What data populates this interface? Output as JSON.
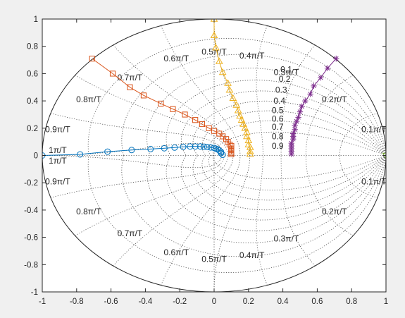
{
  "chart_data": {
    "type": "scatter",
    "title": "",
    "xlabel": "",
    "ylabel": "",
    "xlim": [
      -1,
      1
    ],
    "ylim": [
      -1,
      1
    ],
    "grid": "zgrid",
    "legend": "none",
    "x_ticks": [
      "-1",
      "-0.8",
      "-0.6",
      "-0.4",
      "-0.2",
      "0",
      "0.2",
      "0.4",
      "0.6",
      "0.8",
      "1"
    ],
    "y_ticks": [
      "1",
      "0.8",
      "0.6",
      "0.4",
      "0.2",
      "0",
      "-0.2",
      "-0.4",
      "-0.6",
      "-0.8",
      "-1"
    ],
    "zeta_labels": [
      {
        "text": "0.1",
        "x": 0.42,
        "y": 0.63
      },
      {
        "text": "0.2",
        "x": 0.41,
        "y": 0.56
      },
      {
        "text": "0.3",
        "x": 0.39,
        "y": 0.48
      },
      {
        "text": "0.4",
        "x": 0.38,
        "y": 0.4
      },
      {
        "text": "0.5",
        "x": 0.37,
        "y": 0.33
      },
      {
        "text": "0.6",
        "x": 0.37,
        "y": 0.27
      },
      {
        "text": "0.7",
        "x": 0.37,
        "y": 0.21
      },
      {
        "text": "0.8",
        "x": 0.37,
        "y": 0.14
      },
      {
        "text": "0.9",
        "x": 0.37,
        "y": 0.07
      }
    ],
    "wn_labels": [
      {
        "text": "0.1π/T",
        "x": 0.93,
        "y": 0.19
      },
      {
        "text": "0.2π/T",
        "x": 0.7,
        "y": 0.41
      },
      {
        "text": "0.3π/T",
        "x": 0.42,
        "y": 0.61
      },
      {
        "text": "0.4π/T",
        "x": 0.22,
        "y": 0.73
      },
      {
        "text": "0.5π/T",
        "x": 0.0,
        "y": 0.76
      },
      {
        "text": "0.6π/T",
        "x": -0.22,
        "y": 0.71
      },
      {
        "text": "0.7π/T",
        "x": -0.49,
        "y": 0.57
      },
      {
        "text": "0.8π/T",
        "x": -0.73,
        "y": 0.41
      },
      {
        "text": "0.9π/T",
        "x": -0.91,
        "y": 0.19
      },
      {
        "text": "1π/T",
        "x": -0.91,
        "y": 0.04
      },
      {
        "text": "1π/T",
        "x": -0.91,
        "y": -0.04
      },
      {
        "text": "0.9π/T",
        "x": -0.91,
        "y": -0.19
      },
      {
        "text": "0.8π/T",
        "x": -0.73,
        "y": -0.41
      },
      {
        "text": "0.7π/T",
        "x": -0.49,
        "y": -0.57
      },
      {
        "text": "0.6π/T",
        "x": -0.22,
        "y": -0.71
      },
      {
        "text": "0.5π/T",
        "x": 0.0,
        "y": -0.76
      },
      {
        "text": "0.4π/T",
        "x": 0.22,
        "y": -0.73
      },
      {
        "text": "0.3π/T",
        "x": 0.42,
        "y": -0.61
      },
      {
        "text": "0.2π/T",
        "x": 0.7,
        "y": -0.41
      },
      {
        "text": "0.1π/T",
        "x": 0.93,
        "y": -0.19
      }
    ],
    "series": [
      {
        "color": "#0072BD",
        "marker": "circle",
        "x": [
          -1.0,
          -0.78,
          -0.62,
          -0.48,
          -0.37,
          -0.29,
          -0.23,
          -0.18,
          -0.14,
          -0.11,
          -0.08,
          -0.06,
          -0.04,
          -0.02,
          0.0,
          0.01,
          0.02,
          0.03,
          0.04,
          0.04,
          0.05
        ],
        "y": [
          0.0,
          0.008,
          0.028,
          0.04,
          0.047,
          0.053,
          0.058,
          0.063,
          0.066,
          0.066,
          0.066,
          0.064,
          0.062,
          0.059,
          0.055,
          0.05,
          0.045,
          0.037,
          0.027,
          0.017,
          0.005
        ]
      },
      {
        "color": "#D95319",
        "marker": "square",
        "x": [
          -0.71,
          -0.59,
          -0.49,
          -0.41,
          -0.31,
          -0.24,
          -0.17,
          -0.11,
          -0.07,
          -0.03,
          0.0,
          0.03,
          0.05,
          0.07,
          0.08,
          0.09,
          0.1,
          0.1,
          0.1,
          0.1,
          0.1,
          0.1
        ],
        "y": [
          0.71,
          0.6,
          0.5,
          0.44,
          0.38,
          0.34,
          0.3,
          0.26,
          0.23,
          0.2,
          0.18,
          0.16,
          0.14,
          0.12,
          0.1,
          0.08,
          0.07,
          0.05,
          0.04,
          0.03,
          0.02,
          0.01
        ]
      },
      {
        "color": "#EDB120",
        "marker": "triangle",
        "x": [
          0.0,
          0.0,
          0.01,
          0.03,
          0.05,
          0.08,
          0.09,
          0.11,
          0.13,
          0.14,
          0.15,
          0.16,
          0.17,
          0.18,
          0.19,
          0.19,
          0.2,
          0.2,
          0.21,
          0.21,
          0.21
        ],
        "y": [
          1.0,
          0.88,
          0.79,
          0.69,
          0.61,
          0.53,
          0.48,
          0.42,
          0.37,
          0.33,
          0.29,
          0.26,
          0.23,
          0.2,
          0.17,
          0.14,
          0.11,
          0.08,
          0.06,
          0.03,
          0.01
        ]
      },
      {
        "color": "#7E2F8E",
        "marker": "asterisk",
        "x": [
          0.71,
          0.66,
          0.62,
          0.58,
          0.56,
          0.53,
          0.51,
          0.5,
          0.49,
          0.48,
          0.47,
          0.47,
          0.46,
          0.46,
          0.46,
          0.45,
          0.45,
          0.45,
          0.45,
          0.45
        ],
        "y": [
          0.71,
          0.64,
          0.57,
          0.51,
          0.45,
          0.4,
          0.36,
          0.32,
          0.28,
          0.25,
          0.22,
          0.19,
          0.16,
          0.14,
          0.12,
          0.09,
          0.07,
          0.05,
          0.03,
          0.01
        ]
      },
      {
        "color": "#77AC30",
        "marker": "triangle-down",
        "x": [
          1.0
        ],
        "y": [
          0.0
        ]
      }
    ]
  }
}
